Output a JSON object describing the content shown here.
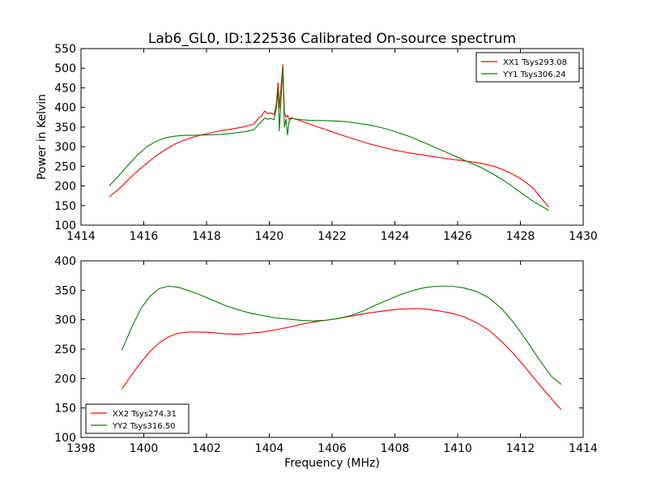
{
  "title": "Lab6_GL0, ID:122536 Calibrated On-source spectrum",
  "chart_data": [
    {
      "type": "line",
      "ylabel": "Power in Kelvin",
      "xlabel": "",
      "xlim": [
        1414,
        1430
      ],
      "ylim": [
        100,
        550
      ],
      "xticks": [
        "1414",
        "1416",
        "1418",
        "1420",
        "1422",
        "1424",
        "1426",
        "1428",
        "1430"
      ],
      "yticks": [
        "100",
        "150",
        "200",
        "250",
        "300",
        "350",
        "400",
        "450",
        "500",
        "550"
      ],
      "grid": false,
      "legend_position": "top-right",
      "series": [
        {
          "name": "XX1 Tsys293.08",
          "color": "#ff0000",
          "x": [
            1414.9,
            1415.2,
            1415.5,
            1415.8,
            1416.1,
            1416.4,
            1416.7,
            1417.0,
            1417.3,
            1417.6,
            1418.0,
            1418.4,
            1418.8,
            1419.2,
            1419.5,
            1419.65,
            1419.75,
            1419.85,
            1419.95,
            1420.05,
            1420.15,
            1420.22,
            1420.28,
            1420.32,
            1420.38,
            1420.43,
            1420.48,
            1420.53,
            1420.58,
            1420.63,
            1420.7,
            1420.8,
            1421.0,
            1421.3,
            1421.6,
            1422.0,
            1422.4,
            1422.8,
            1423.2,
            1423.6,
            1424.0,
            1424.4,
            1424.8,
            1425.2,
            1425.6,
            1426.0,
            1426.4,
            1426.8,
            1427.2,
            1427.6,
            1428.0,
            1428.4,
            1428.9
          ],
          "y": [
            172,
            192,
            215,
            238,
            258,
            277,
            293,
            307,
            317,
            325,
            333,
            340,
            345,
            351,
            357,
            372,
            378,
            391,
            384,
            386,
            382,
            407,
            463,
            398,
            460,
            509,
            388,
            375,
            380,
            370,
            374,
            371,
            366,
            357,
            349,
            338,
            327,
            317,
            307,
            299,
            291,
            285,
            280,
            275,
            270,
            266,
            262,
            257,
            249,
            236,
            219,
            195,
            146
          ]
        },
        {
          "name": "YY1 Tsys306.24",
          "color": "#008000",
          "x": [
            1414.9,
            1415.2,
            1415.5,
            1415.8,
            1416.1,
            1416.4,
            1416.7,
            1417.0,
            1417.3,
            1417.6,
            1418.0,
            1418.4,
            1418.8,
            1419.2,
            1419.5,
            1419.65,
            1419.75,
            1419.85,
            1419.95,
            1420.05,
            1420.15,
            1420.22,
            1420.28,
            1420.32,
            1420.38,
            1420.43,
            1420.48,
            1420.53,
            1420.58,
            1420.63,
            1420.7,
            1420.8,
            1421.0,
            1421.3,
            1421.6,
            1422.0,
            1422.4,
            1422.8,
            1423.2,
            1423.6,
            1424.0,
            1424.4,
            1424.8,
            1425.2,
            1425.6,
            1426.0,
            1426.4,
            1426.8,
            1427.2,
            1427.6,
            1428.0,
            1428.4,
            1428.9
          ],
          "y": [
            200,
            226,
            253,
            279,
            300,
            314,
            323,
            327,
            329,
            329,
            330,
            331,
            334,
            338,
            343,
            356,
            364,
            373,
            370,
            372,
            369,
            395,
            446,
            340,
            430,
            502,
            350,
            370,
            330,
            365,
            372,
            371,
            369,
            367,
            367,
            366,
            364,
            360,
            355,
            348,
            339,
            328,
            315,
            301,
            287,
            273,
            259,
            245,
            227,
            207,
            184,
            161,
            138
          ]
        }
      ]
    },
    {
      "type": "line",
      "ylabel": "",
      "xlabel": "Frequency (MHz)",
      "xlim": [
        1398,
        1414
      ],
      "ylim": [
        100,
        400
      ],
      "xticks": [
        "1398",
        "1400",
        "1402",
        "1404",
        "1406",
        "1408",
        "1410",
        "1412",
        "1414"
      ],
      "yticks": [
        "100",
        "150",
        "200",
        "250",
        "300",
        "350",
        "400"
      ],
      "grid": false,
      "legend_position": "bottom-left",
      "series": [
        {
          "name": "XX2 Tsys274.31",
          "color": "#ff0000",
          "x": [
            1399.3,
            1399.6,
            1399.9,
            1400.2,
            1400.5,
            1400.8,
            1401.1,
            1401.4,
            1401.8,
            1402.2,
            1402.6,
            1403.0,
            1403.4,
            1403.8,
            1404.2,
            1404.6,
            1405.0,
            1405.4,
            1405.8,
            1406.2,
            1406.6,
            1407.0,
            1407.4,
            1407.8,
            1408.2,
            1408.6,
            1409.0,
            1409.4,
            1409.8,
            1410.2,
            1410.6,
            1411.0,
            1411.4,
            1411.8,
            1412.2,
            1412.6,
            1413.0,
            1413.3
          ],
          "y": [
            182,
            205,
            227,
            246,
            261,
            271,
            277,
            279,
            279,
            278,
            276,
            275,
            277,
            279,
            283,
            287,
            292,
            296,
            299,
            302,
            306,
            310,
            313,
            316,
            318,
            319,
            318,
            315,
            311,
            305,
            295,
            282,
            263,
            241,
            216,
            190,
            165,
            147
          ]
        },
        {
          "name": "YY2 Tsys316.50",
          "color": "#008000",
          "x": [
            1399.3,
            1399.6,
            1399.9,
            1400.2,
            1400.5,
            1400.8,
            1401.1,
            1401.4,
            1401.8,
            1402.2,
            1402.6,
            1403.0,
            1403.4,
            1403.8,
            1404.2,
            1404.6,
            1405.0,
            1405.4,
            1405.8,
            1406.2,
            1406.6,
            1407.0,
            1407.4,
            1407.8,
            1408.2,
            1408.6,
            1409.0,
            1409.4,
            1409.8,
            1410.2,
            1410.6,
            1411.0,
            1411.4,
            1411.8,
            1412.2,
            1412.6,
            1413.0,
            1413.3
          ],
          "y": [
            248,
            285,
            318,
            340,
            353,
            357,
            355,
            350,
            342,
            333,
            324,
            317,
            311,
            307,
            303,
            301,
            299,
            298,
            299,
            302,
            307,
            315,
            325,
            334,
            343,
            350,
            355,
            357,
            357,
            354,
            348,
            337,
            319,
            294,
            264,
            232,
            203,
            190
          ]
        }
      ]
    }
  ]
}
